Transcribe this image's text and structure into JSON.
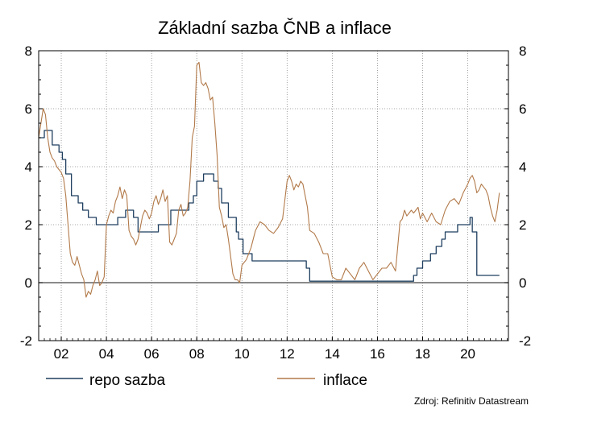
{
  "chart_data": {
    "type": "line",
    "title": "Základní sazba ČNB a inflace",
    "xlabel": "",
    "ylabel": "",
    "xlim": [
      2001.0,
      2021.8
    ],
    "ylim": [
      -2,
      8
    ],
    "yticks": [
      -2,
      0,
      2,
      4,
      6,
      8
    ],
    "xticks": [
      {
        "x": 2002,
        "label": "02"
      },
      {
        "x": 2004,
        "label": "04"
      },
      {
        "x": 2006,
        "label": "06"
      },
      {
        "x": 2008,
        "label": "08"
      },
      {
        "x": 2010,
        "label": "10"
      },
      {
        "x": 2012,
        "label": "12"
      },
      {
        "x": 2014,
        "label": "14"
      },
      {
        "x": 2016,
        "label": "16"
      },
      {
        "x": 2018,
        "label": "18"
      },
      {
        "x": 2020,
        "label": "20"
      }
    ],
    "grid": true,
    "dual_axis_mirror": true,
    "legend_position": "bottom",
    "source": "Zdroj: Refinitiv Datastream",
    "series": [
      {
        "name": "repo sazba",
        "color": "#1f3f5f",
        "step": true,
        "x": [
          2001.0,
          2001.25,
          2001.6,
          2001.9,
          2002.05,
          2002.2,
          2002.45,
          2002.75,
          2002.95,
          2003.2,
          2003.55,
          2003.95,
          2004.5,
          2004.85,
          2005.2,
          2005.4,
          2005.9,
          2006.3,
          2006.85,
          2007.65,
          2007.85,
          2008.0,
          2008.3,
          2008.6,
          2008.75,
          2008.95,
          2009.1,
          2009.4,
          2009.75,
          2009.85,
          2010.05,
          2010.45,
          2012.45,
          2012.85,
          2013.0,
          2015.5,
          2017.6,
          2017.75,
          2018.0,
          2018.35,
          2018.6,
          2018.85,
          2019.0,
          2019.35,
          2019.55,
          2019.7,
          2020.1,
          2020.2,
          2020.4,
          2021.4
        ],
        "y": [
          5.0,
          5.25,
          4.75,
          4.5,
          4.25,
          3.75,
          3.0,
          2.75,
          2.5,
          2.25,
          2.0,
          2.0,
          2.25,
          2.5,
          2.25,
          1.75,
          1.75,
          2.0,
          2.5,
          2.75,
          3.0,
          3.5,
          3.75,
          3.75,
          3.5,
          3.25,
          2.75,
          2.25,
          1.75,
          1.5,
          1.0,
          0.75,
          0.75,
          0.5,
          0.05,
          0.05,
          0.25,
          0.5,
          0.75,
          1.0,
          1.25,
          1.5,
          1.75,
          1.75,
          2.0,
          2.0,
          2.25,
          1.75,
          0.25,
          0.25
        ]
      },
      {
        "name": "inflace",
        "color": "#b27a4a",
        "step": false,
        "x": [
          2001.0,
          2001.1,
          2001.2,
          2001.3,
          2001.4,
          2001.5,
          2001.6,
          2001.7,
          2001.8,
          2001.9,
          2002.0,
          2002.1,
          2002.2,
          2002.3,
          2002.4,
          2002.5,
          2002.6,
          2002.7,
          2002.8,
          2002.9,
          2003.0,
          2003.1,
          2003.2,
          2003.3,
          2003.4,
          2003.5,
          2003.6,
          2003.7,
          2003.8,
          2003.9,
          2004.0,
          2004.1,
          2004.2,
          2004.3,
          2004.4,
          2004.5,
          2004.6,
          2004.7,
          2004.8,
          2004.9,
          2005.0,
          2005.1,
          2005.2,
          2005.3,
          2005.4,
          2005.5,
          2005.6,
          2005.7,
          2005.8,
          2005.9,
          2006.0,
          2006.1,
          2006.2,
          2006.3,
          2006.4,
          2006.5,
          2006.6,
          2006.7,
          2006.8,
          2006.9,
          2007.0,
          2007.1,
          2007.2,
          2007.3,
          2007.4,
          2007.5,
          2007.6,
          2007.7,
          2007.8,
          2007.9,
          2008.0,
          2008.1,
          2008.2,
          2008.3,
          2008.4,
          2008.5,
          2008.6,
          2008.7,
          2008.8,
          2008.9,
          2009.0,
          2009.1,
          2009.2,
          2009.3,
          2009.4,
          2009.5,
          2009.6,
          2009.7,
          2009.8,
          2009.9,
          2010.0,
          2010.2,
          2010.4,
          2010.6,
          2010.8,
          2011.0,
          2011.2,
          2011.4,
          2011.6,
          2011.8,
          2012.0,
          2012.1,
          2012.2,
          2012.3,
          2012.4,
          2012.5,
          2012.6,
          2012.7,
          2012.8,
          2012.9,
          2013.0,
          2013.2,
          2013.4,
          2013.6,
          2013.8,
          2014.0,
          2014.2,
          2014.4,
          2014.6,
          2014.8,
          2015.0,
          2015.2,
          2015.4,
          2015.6,
          2015.8,
          2016.0,
          2016.2,
          2016.4,
          2016.6,
          2016.8,
          2017.0,
          2017.1,
          2017.2,
          2017.3,
          2017.4,
          2017.5,
          2017.6,
          2017.7,
          2017.8,
          2017.9,
          2018.0,
          2018.2,
          2018.4,
          2018.6,
          2018.8,
          2019.0,
          2019.2,
          2019.4,
          2019.6,
          2019.8,
          2020.0,
          2020.1,
          2020.2,
          2020.3,
          2020.4,
          2020.5,
          2020.6,
          2020.7,
          2020.8,
          2020.9,
          2021.0,
          2021.1,
          2021.2,
          2021.3,
          2021.4
        ],
        "y": [
          5.0,
          5.5,
          6.0,
          5.8,
          5.0,
          4.5,
          4.3,
          4.2,
          4.0,
          3.9,
          3.8,
          3.6,
          3.0,
          2.0,
          1.0,
          0.7,
          0.6,
          0.9,
          0.6,
          0.3,
          0.1,
          -0.5,
          -0.3,
          -0.4,
          -0.1,
          0.1,
          0.4,
          -0.1,
          0.0,
          0.2,
          2.0,
          2.3,
          2.5,
          2.4,
          2.8,
          3.0,
          3.3,
          2.9,
          3.2,
          3.0,
          1.8,
          1.6,
          1.5,
          1.3,
          1.5,
          1.9,
          2.3,
          2.5,
          2.4,
          2.2,
          2.4,
          2.8,
          3.0,
          2.7,
          2.9,
          3.2,
          2.8,
          3.0,
          1.4,
          1.3,
          1.5,
          1.7,
          2.5,
          2.7,
          2.3,
          2.4,
          2.6,
          3.5,
          5.0,
          5.4,
          7.5,
          7.6,
          6.9,
          6.8,
          6.9,
          6.7,
          6.3,
          6.4,
          5.5,
          4.4,
          2.6,
          2.3,
          1.9,
          2.0,
          1.5,
          0.9,
          0.3,
          0.1,
          0.1,
          0.0,
          0.6,
          0.8,
          1.2,
          1.8,
          2.1,
          2.0,
          1.8,
          1.7,
          1.9,
          2.2,
          3.5,
          3.7,
          3.5,
          3.2,
          3.4,
          3.3,
          3.5,
          3.4,
          3.0,
          2.6,
          1.8,
          1.7,
          1.4,
          1.0,
          1.0,
          0.2,
          0.1,
          0.1,
          0.5,
          0.3,
          0.1,
          0.5,
          0.7,
          0.4,
          0.1,
          0.3,
          0.5,
          0.5,
          0.7,
          0.4,
          2.1,
          2.2,
          2.5,
          2.3,
          2.4,
          2.5,
          2.4,
          2.5,
          2.6,
          2.2,
          2.4,
          2.1,
          2.4,
          2.1,
          2.0,
          2.5,
          2.8,
          2.9,
          2.7,
          3.1,
          3.4,
          3.6,
          3.7,
          3.5,
          3.1,
          3.2,
          3.4,
          3.3,
          3.2,
          3.0,
          2.6,
          2.3,
          2.1,
          2.5,
          3.1
        ]
      }
    ]
  }
}
